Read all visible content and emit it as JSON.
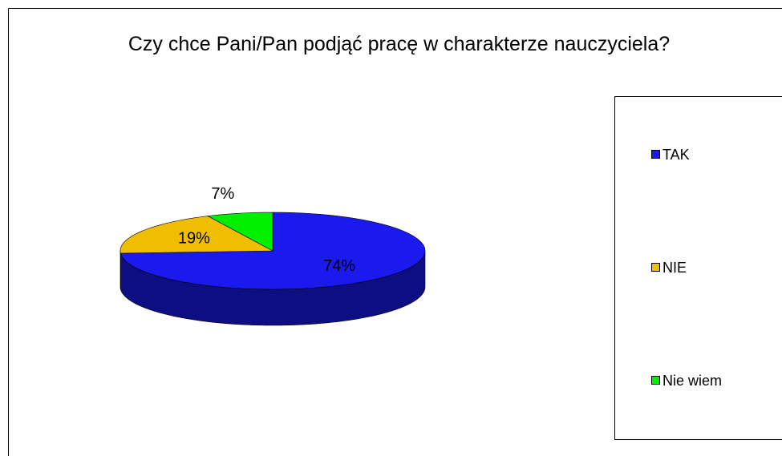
{
  "chart_data": {
    "type": "pie3d",
    "title": "Czy chce Pani/Pan podjąć pracę w charakterze nauczyciela?",
    "categories": [
      "TAK",
      "NIE",
      "Nie wiem"
    ],
    "values": [
      74,
      19,
      7
    ],
    "value_labels": [
      "74%",
      "19%",
      "7%"
    ],
    "colors": [
      "#1a1aee",
      "#f0be00",
      "#00ee00"
    ],
    "legend": "right"
  }
}
